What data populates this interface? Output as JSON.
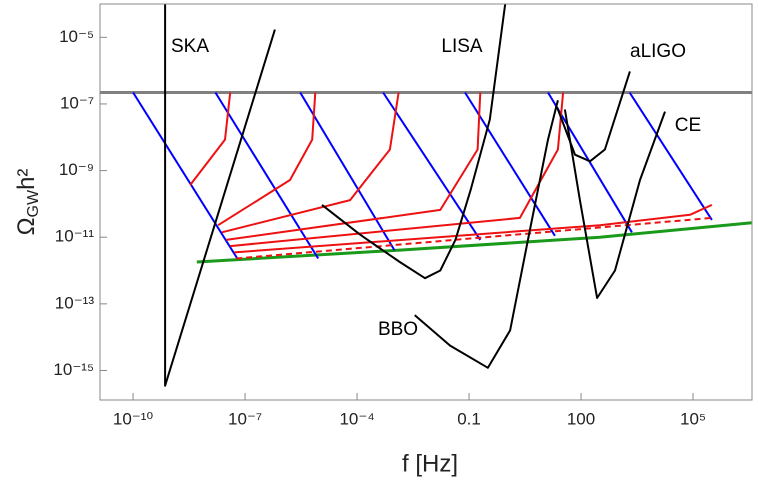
{
  "chart_data": {
    "type": "line",
    "xlabel": "f [Hz]",
    "ylabel": {
      "symbol": "Ω",
      "subscript": "GW",
      "text": "h²"
    },
    "xlog": true,
    "ylog": true,
    "grid": false,
    "xlim": [
      1.3e-11,
      3800000.0
    ],
    "ylim": [
      1.3e-16,
      0.0001
    ],
    "xticks": [
      {
        "value": 1e-10,
        "label": "10⁻¹⁰"
      },
      {
        "value": 1e-07,
        "label": "10⁻⁷"
      },
      {
        "value": 0.0001,
        "label": "10⁻⁴"
      },
      0.1,
      100,
      {
        "value": 100000.0,
        "label": "10⁵"
      }
    ],
    "yticks": [
      {
        "value": 1e-05,
        "label": "10⁻⁵"
      },
      {
        "value": 1e-07,
        "label": "10⁻⁷"
      },
      {
        "value": 1e-09,
        "label": "10⁻⁹"
      },
      {
        "value": 1e-11,
        "label": "10⁻¹¹"
      },
      {
        "value": 1e-13,
        "label": "10⁻¹³"
      },
      {
        "value": 1e-15,
        "label": "10⁻¹⁵"
      }
    ],
    "annotations": [
      "SKA",
      "LISA",
      "aLIGO",
      "CE",
      "BBO"
    ],
    "series": [
      {
        "color": "#808080",
        "width": 3,
        "x": [
          1.3e-11,
          3800000.0
        ],
        "values": [
          2.2e-07,
          2.2e-07
        ]
      },
      {
        "color": "#1a9a1a",
        "width": 3,
        "x": [
          5.1e-09,
          0.0014,
          320,
          3800000.0
        ],
        "values": [
          1.8e-12,
          4.1e-12,
          1e-11,
          2.7e-11
        ]
      },
      {
        "color": "#0000ff",
        "width": 2,
        "x": [
          1e-10,
          6.2e-08
        ],
        "values": [
          2.2e-07,
          2.3e-12
        ]
      },
      {
        "color": "#0000ff",
        "width": 2,
        "x": [
          1.6e-08,
          9.1e-06
        ],
        "values": [
          2.2e-07,
          2.3e-12
        ]
      },
      {
        "color": "#0000ff",
        "width": 2,
        "x": [
          3e-06,
          0.001
        ],
        "values": [
          2.2e-07,
          4.1e-12
        ]
      },
      {
        "color": "#0000ff",
        "width": 2,
        "x": [
          0.0005,
          0.2
        ],
        "values": [
          2.2e-07,
          8.3e-12
        ]
      },
      {
        "color": "#0000ff",
        "width": 2,
        "x": [
          0.078,
          20
        ],
        "values": [
          2.2e-07,
          1.1e-11
        ]
      },
      {
        "color": "#0000ff",
        "width": 2,
        "x": [
          13,
          2300
        ],
        "values": [
          2.2e-07,
          1.4e-11
        ]
      },
      {
        "color": "#0000ff",
        "width": 2,
        "x": [
          2000,
          320000
        ],
        "values": [
          2.2e-07,
          3.3e-11
        ]
      },
      {
        "color": "#ee1111",
        "width": 2,
        "x": [
          3.4e-09,
          2.9e-08,
          4e-08
        ],
        "values": [
          3.7e-10,
          8.5e-09,
          2.2e-07
        ]
      },
      {
        "color": "#ee1111",
        "width": 2,
        "x": [
          1.9e-08,
          1.6e-06,
          6.3e-06,
          7.6e-06
        ],
        "values": [
          2.3e-11,
          5.2e-10,
          8.5e-09,
          2.2e-07
        ]
      },
      {
        "color": "#ee1111",
        "width": 2,
        "x": [
          2.4e-08,
          6.5e-05,
          0.00076,
          0.0013
        ],
        "values": [
          1.4e-11,
          1.3e-10,
          4.3e-09,
          2.2e-07
        ]
      },
      {
        "color": "#ee1111",
        "width": 2,
        "x": [
          3.1e-08,
          0.017,
          0.17,
          0.2
        ],
        "values": [
          8.3e-12,
          6.6e-11,
          4.3e-09,
          2.2e-07
        ]
      },
      {
        "color": "#ee1111",
        "width": 2,
        "x": [
          4e-08,
          2.3,
          24,
          33
        ],
        "values": [
          5.4e-12,
          3.8e-11,
          4.3e-09,
          2.2e-07
        ]
      },
      {
        "color": "#ee1111",
        "width": 2,
        "x": [
          5.1e-08,
          320,
          83000,
          320000
        ],
        "values": [
          3.5e-12,
          2.3e-11,
          4.7e-11,
          9.3e-11
        ]
      },
      {
        "color": "#ee1111",
        "width": 2,
        "dashed": true,
        "x": [
          5.8e-08,
          320000
        ],
        "values": [
          2.3e-12,
          3.8e-11
        ]
      },
      {
        "color": "#000000",
        "width": 2,
        "x": [
          7.2e-10,
          7.2e-10,
          6.3e-07
        ],
        "values": [
          0.0001,
          3.5e-16,
          1.7e-05
        ]
      },
      {
        "color": "#000000",
        "width": 2,
        "x": [
          1.15e-05,
          0.00012,
          0.0014,
          0.0066,
          0.017,
          0.043,
          0.11,
          0.36,
          0.93
        ],
        "values": [
          9.3e-11,
          1.2e-11,
          1.8e-12,
          5.9e-13,
          1e-12,
          8.3e-12,
          2.6e-10,
          3.4e-08,
          0.0001
        ]
      },
      {
        "color": "#000000",
        "width": 2,
        "x": [
          23,
          69,
          174,
          437,
          2040
        ],
        "values": [
          7.8e-08,
          3e-09,
          1.9e-09,
          4.3e-09,
          9.5e-07
        ]
      },
      {
        "color": "#000000",
        "width": 2,
        "x": [
          37,
          93,
          270,
          810,
          3800,
          17800
        ],
        "values": [
          6.8e-08,
          1.3e-10,
          1.5e-13,
          1e-12,
          5.2e-10,
          5.9e-08
        ]
      },
      {
        "color": "#000000",
        "width": 2,
        "x": [
          0.0035,
          0.031,
          0.32,
          1.26,
          4.3,
          13,
          24
        ],
        "values": [
          4.6e-14,
          5.6e-15,
          1.2e-15,
          1.6e-14,
          1.7e-11,
          8.5e-09,
          1.3e-07
        ]
      }
    ]
  }
}
